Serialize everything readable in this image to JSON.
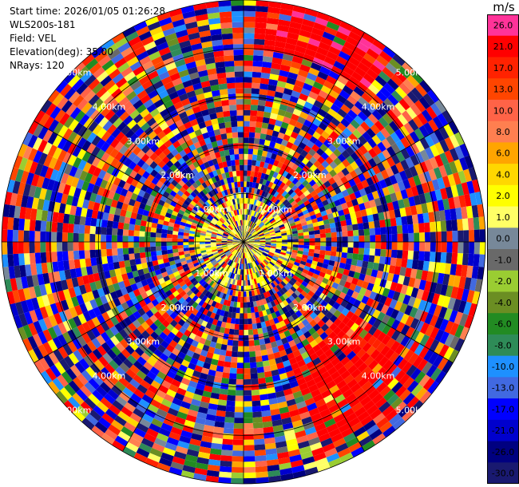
{
  "header": {
    "start_time": "Start time: 2026/01/05 01:26:28",
    "site": "WLS200s-181",
    "field": "Field: VEL",
    "elevation": "Elevation(deg): 35.00",
    "nrays": "NRays: 120"
  },
  "colorbar": {
    "unit": "m/s",
    "levels": [
      {
        "label": "26.0",
        "color": "#ff3399"
      },
      {
        "label": "21.0",
        "color": "#ff0000"
      },
      {
        "label": "17.0",
        "color": "#ff2200"
      },
      {
        "label": "13.0",
        "color": "#ff4500"
      },
      {
        "label": "10.0",
        "color": "#ff6347"
      },
      {
        "label": "8.0",
        "color": "#ff7f50"
      },
      {
        "label": "6.0",
        "color": "#ffa500"
      },
      {
        "label": "4.0",
        "color": "#ffd700"
      },
      {
        "label": "2.0",
        "color": "#ffff00"
      },
      {
        "label": "1.0",
        "color": "#ffff66"
      },
      {
        "label": "0.0",
        "color": "#778899"
      },
      {
        "label": "-1.0",
        "color": "#696969"
      },
      {
        "label": "-2.0",
        "color": "#9acd32"
      },
      {
        "label": "-4.0",
        "color": "#6b8e23"
      },
      {
        "label": "-6.0",
        "color": "#228b22"
      },
      {
        "label": "-8.0",
        "color": "#2e8b57"
      },
      {
        "label": "-10.0",
        "color": "#1e90ff"
      },
      {
        "label": "-13.0",
        "color": "#4169e1"
      },
      {
        "label": "-17.0",
        "color": "#0000ff"
      },
      {
        "label": "-21.0",
        "color": "#0000cd"
      },
      {
        "label": "-26.0",
        "color": "#000080"
      },
      {
        "label": "-30.0",
        "color": "#191970"
      }
    ]
  },
  "chart_data": {
    "type": "heatmap",
    "projection": "polar PPI",
    "field": "VEL",
    "unit": "m/s",
    "nrays": 120,
    "range_ring_labels": [
      "1.00km",
      "2.00km",
      "3.00km",
      "4.00km",
      "5.00km"
    ],
    "range_rings_km": [
      1,
      2,
      3,
      4,
      5
    ],
    "max_range_km": 5.0,
    "value_range": [
      -30,
      26
    ],
    "features": [
      {
        "sector": "north-northeast",
        "range_km": [
          4.0,
          5.0
        ],
        "approx_value": 24
      },
      {
        "sector": "southeast",
        "range_km": [
          2.5,
          4.5
        ],
        "approx_value": 23
      },
      {
        "sector": "center",
        "range_km": [
          0.0,
          1.0
        ],
        "approx_value": 2
      }
    ]
  }
}
